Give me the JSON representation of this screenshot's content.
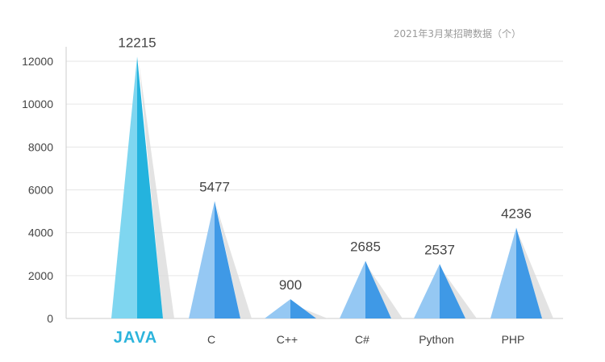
{
  "chart_data": {
    "type": "bar",
    "title": "2021年3月某招聘数据（个）",
    "categories": [
      "JAVA",
      "C",
      "C++",
      "C#",
      "Python",
      "PHP"
    ],
    "values": [
      12215,
      5477,
      900,
      2685,
      2537,
      4236
    ],
    "yticks": [
      0,
      2000,
      4000,
      6000,
      8000,
      10000,
      12000
    ],
    "ylim": [
      0,
      12000
    ],
    "grid": true,
    "highlight_category": "JAVA",
    "colors": {
      "highlight_light": "#7fd6f0",
      "highlight_dark": "#24b3de",
      "highlight_label": "#2cb4dc",
      "normal_light": "#95c8f3",
      "normal_dark": "#3f99e6",
      "shadow": "#dcdcdc",
      "grid": "#e6e6e6",
      "axis": "#cccccc"
    }
  }
}
